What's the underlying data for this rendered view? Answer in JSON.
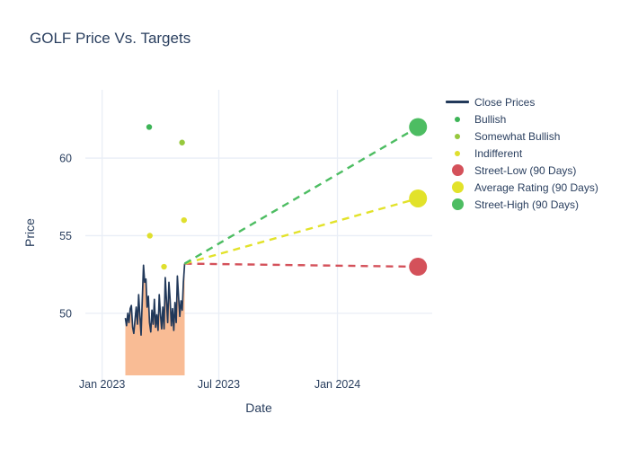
{
  "title": "GOLF Price Vs. Targets",
  "colors": {
    "text": "#2a3f5f",
    "grid": "#e9eef6",
    "close_line": "#22395a",
    "close_fill": "#f9bc95",
    "bullish": "#3db457",
    "somewhat_bullish": "#96c83d",
    "indifferent": "#dfdf2e",
    "street_low": "#d4515a",
    "average_rating": "#e2e22a",
    "street_high": "#4dbd62"
  },
  "legend": {
    "items": [
      {
        "label": "Close Prices",
        "swatch": "line",
        "color": "#22395a"
      },
      {
        "label": "Bullish",
        "swatch": "dot-sm",
        "color": "#3db457"
      },
      {
        "label": "Somewhat Bullish",
        "swatch": "dot-sm",
        "color": "#96c83d"
      },
      {
        "label": "Indifferent",
        "swatch": "dot-sm",
        "color": "#dfdf2e"
      },
      {
        "label": "Street-Low (90 Days)",
        "swatch": "dot-lg",
        "color": "#d4515a"
      },
      {
        "label": "Average Rating (90 Days)",
        "swatch": "dot-lg",
        "color": "#e2e22a"
      },
      {
        "label": "Street-High (90 Days)",
        "swatch": "dot-lg",
        "color": "#4dbd62"
      }
    ]
  },
  "chart_data": {
    "type": "line",
    "title": "GOLF Price Vs. Targets",
    "xlabel": "Date",
    "ylabel": "Price",
    "x_ticks": [
      {
        "label": "Jan 2023",
        "date": "2023-01-01"
      },
      {
        "label": "Jul 2023",
        "date": "2023-07-01"
      },
      {
        "label": "Jan 2024",
        "date": "2024-01-01"
      }
    ],
    "y_ticks": [
      50,
      55,
      60
    ],
    "xlim": [
      "2022-12-06",
      "2024-05-27"
    ],
    "ylim": [
      46.0,
      64.4
    ],
    "grid": true,
    "legend_position": "right",
    "close_prices": {
      "name": "Close Prices",
      "start_date": "2023-02-06",
      "end_date": "2023-05-09",
      "values": [
        49.7,
        49.2,
        50.0,
        49.4,
        50.3,
        50.5,
        49.1,
        48.7,
        49.6,
        50.4,
        49.3,
        51.2,
        49.9,
        48.6,
        50.8,
        53.1,
        52.0,
        52.2,
        50.4,
        51.1,
        49.4,
        48.8,
        50.2,
        49.3,
        50.9,
        49.1,
        49.9,
        48.9,
        51.2,
        50.0,
        49.0,
        50.4,
        49.0,
        52.3,
        50.8,
        49.4,
        52.0,
        50.9,
        49.2,
        50.3,
        48.9,
        50.7,
        49.4,
        52.4,
        51.0,
        49.8,
        50.8,
        50.2,
        52.0,
        53.2
      ]
    },
    "ratings": {
      "bullish": [
        {
          "date": "2023-03-15",
          "price": 62
        }
      ],
      "somewhat_bullish": [
        {
          "date": "2023-05-05",
          "price": 61
        }
      ],
      "indifferent": [
        {
          "date": "2023-03-16",
          "price": 55
        },
        {
          "date": "2023-04-07",
          "price": 53
        },
        {
          "date": "2023-05-08",
          "price": 56
        }
      ]
    },
    "targets": {
      "date": "2024-05-05",
      "street_low": 53,
      "average_rating": 57.4,
      "street_high": 62
    }
  }
}
